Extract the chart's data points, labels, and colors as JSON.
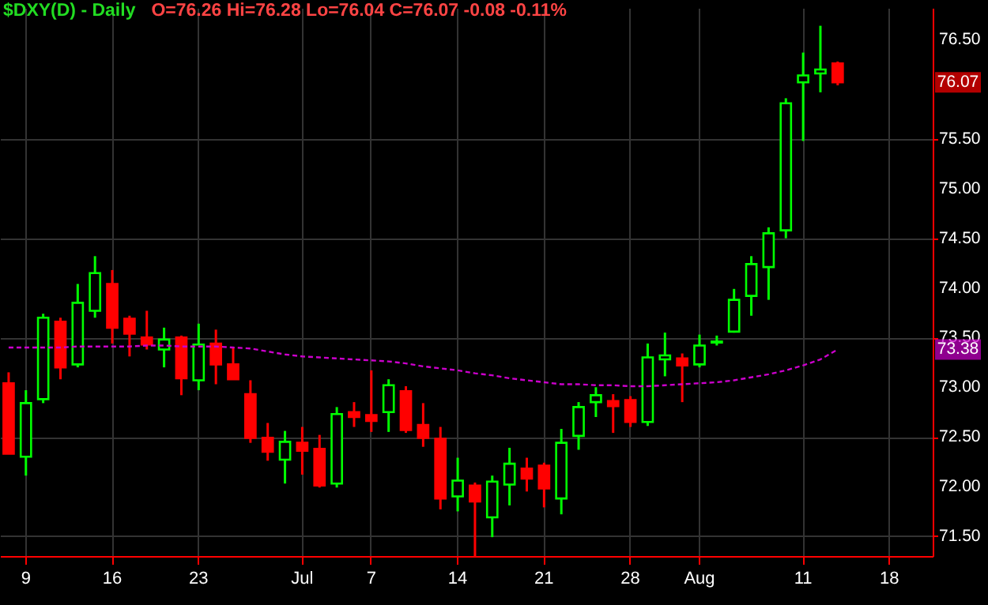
{
  "chart_data": {
    "type": "candlestick",
    "title": "$DXY(D) - Daily",
    "subtitle": "O=76.26  Hi=76.28  Lo=76.04  C=76.07  -0.08  -0.11%",
    "categories": [
      null,
      "9",
      null,
      null,
      null,
      null,
      "16",
      null,
      null,
      null,
      null,
      "23",
      null,
      null,
      null,
      null,
      null,
      "Jul",
      null,
      null,
      null,
      "7",
      null,
      null,
      null,
      null,
      "14",
      null,
      null,
      null,
      null,
      "21",
      null,
      null,
      null,
      null,
      "28",
      null,
      null,
      null,
      "Aug",
      null,
      null,
      null,
      null,
      null,
      "11",
      null,
      null,
      null,
      null,
      "18",
      null,
      null
    ],
    "ohlc": [
      [
        73.04,
        73.15,
        72.33,
        72.33
      ],
      [
        72.3,
        72.97,
        72.11,
        72.84
      ],
      [
        72.88,
        73.74,
        72.84,
        73.7
      ],
      [
        73.66,
        73.7,
        73.08,
        73.2
      ],
      [
        73.23,
        74.04,
        73.2,
        73.85
      ],
      [
        73.77,
        74.32,
        73.7,
        74.15
      ],
      [
        74.04,
        74.18,
        73.44,
        73.6
      ],
      [
        73.69,
        73.72,
        73.31,
        73.54
      ],
      [
        73.5,
        73.77,
        73.38,
        73.43
      ],
      [
        73.38,
        73.6,
        73.2,
        73.48
      ],
      [
        73.5,
        73.52,
        72.92,
        73.09
      ],
      [
        73.07,
        73.64,
        72.97,
        73.43
      ],
      [
        73.44,
        73.58,
        73.03,
        73.23
      ],
      [
        73.23,
        73.4,
        73.08,
        73.08
      ],
      [
        72.93,
        73.07,
        72.44,
        72.49
      ],
      [
        72.49,
        72.64,
        72.26,
        72.35
      ],
      [
        72.27,
        72.56,
        72.03,
        72.45
      ],
      [
        72.44,
        72.6,
        72.12,
        72.36
      ],
      [
        72.38,
        72.52,
        71.99,
        72.01
      ],
      [
        72.03,
        72.8,
        71.99,
        72.73
      ],
      [
        72.75,
        72.85,
        72.6,
        72.7
      ],
      [
        72.72,
        73.17,
        72.55,
        72.66
      ],
      [
        72.75,
        73.08,
        72.55,
        73.02
      ],
      [
        72.96,
        73.01,
        72.54,
        72.57
      ],
      [
        72.62,
        72.84,
        72.4,
        72.49
      ],
      [
        72.48,
        72.6,
        71.77,
        71.88
      ],
      [
        71.9,
        72.29,
        71.75,
        72.06
      ],
      [
        72.01,
        72.04,
        71.3,
        71.85
      ],
      [
        71.69,
        72.11,
        71.49,
        72.05
      ],
      [
        72.02,
        72.39,
        71.81,
        72.23
      ],
      [
        72.18,
        72.29,
        71.95,
        72.08
      ],
      [
        72.21,
        72.24,
        71.79,
        71.98
      ],
      [
        71.88,
        72.58,
        71.72,
        72.44
      ],
      [
        72.51,
        72.85,
        72.37,
        72.8
      ],
      [
        72.85,
        73.0,
        72.7,
        72.92
      ],
      [
        72.86,
        72.93,
        72.54,
        72.81
      ],
      [
        72.87,
        72.91,
        72.6,
        72.65
      ],
      [
        72.65,
        73.44,
        72.61,
        73.3
      ],
      [
        73.28,
        73.55,
        73.11,
        73.32
      ],
      [
        73.29,
        73.34,
        72.85,
        73.22
      ],
      [
        73.23,
        73.53,
        73.2,
        73.42
      ],
      [
        73.45,
        73.52,
        73.42,
        73.46
      ],
      [
        73.56,
        73.99,
        73.55,
        73.88
      ],
      [
        73.92,
        74.32,
        73.72,
        74.24
      ],
      [
        74.21,
        74.61,
        73.88,
        74.55
      ],
      [
        74.58,
        75.91,
        74.5,
        75.86
      ],
      [
        76.07,
        76.37,
        75.48,
        76.14
      ],
      [
        76.16,
        76.64,
        75.97,
        76.2
      ],
      [
        76.26,
        76.28,
        76.04,
        76.07
      ],
      null,
      null,
      null,
      null,
      null
    ],
    "series": [
      {
        "type": "line",
        "color": "#cc00cc",
        "line_style": "dashed",
        "values": [
          73.4,
          73.4,
          73.4,
          73.4,
          73.41,
          73.41,
          73.41,
          73.41,
          73.42,
          73.42,
          73.41,
          73.41,
          73.41,
          73.4,
          73.39,
          73.36,
          73.33,
          73.31,
          73.3,
          73.29,
          73.28,
          73.27,
          73.26,
          73.24,
          73.21,
          73.19,
          73.17,
          73.14,
          73.12,
          73.09,
          73.07,
          73.05,
          73.03,
          73.03,
          73.02,
          73.02,
          73.01,
          73.01,
          73.02,
          73.03,
          73.04,
          73.05,
          73.07,
          73.1,
          73.13,
          73.17,
          73.22,
          73.28,
          73.38,
          null,
          null,
          null,
          null,
          null
        ]
      }
    ],
    "ylim": [
      71.3,
      76.82
    ],
    "yticks": [
      {
        "value": 71.5,
        "label": "71.50"
      },
      {
        "value": 72,
        "label": "72.00"
      },
      {
        "value": 72.5,
        "label": "72.50"
      },
      {
        "value": 73,
        "label": "73.00"
      },
      {
        "value": 73.5,
        "label": "73.50"
      },
      {
        "value": 74,
        "label": "74.00"
      },
      {
        "value": 74.5,
        "label": "74.50"
      },
      {
        "value": 75,
        "label": "75.00"
      },
      {
        "value": 75.5,
        "label": "75.50"
      },
      {
        "value": 76.5,
        "label": "76.50"
      }
    ],
    "grid": true,
    "annotations": [
      {
        "text": "76.07",
        "y": 76.07
      },
      {
        "text": "73.38",
        "y": 73.38
      }
    ]
  }
}
